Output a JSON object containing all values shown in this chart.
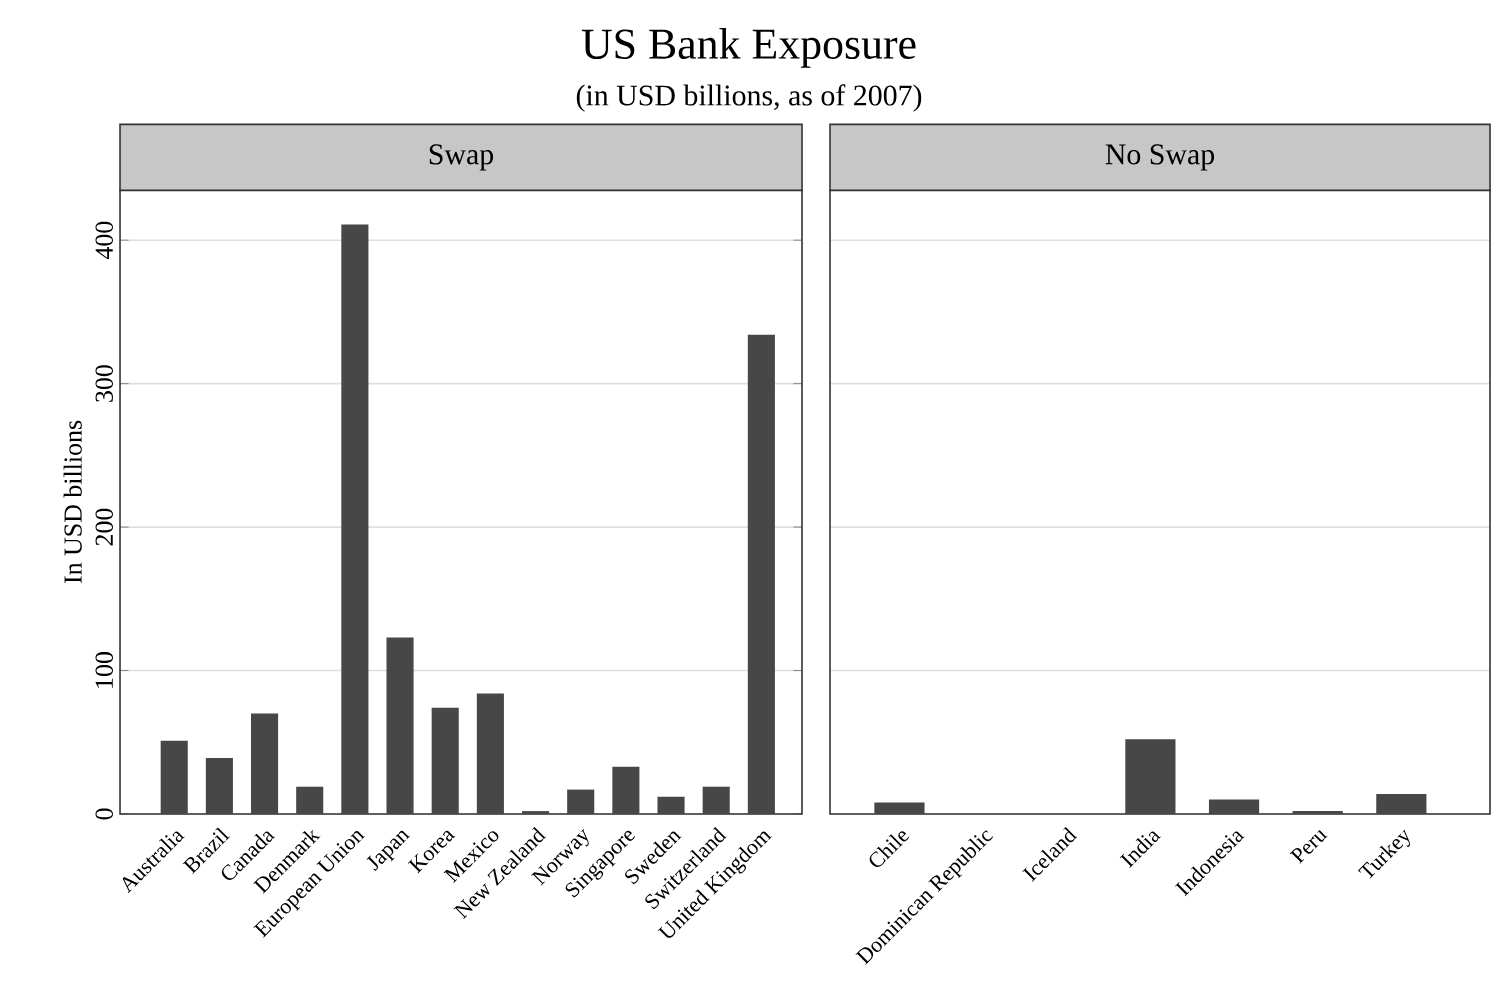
{
  "chart_data": [
    {
      "type": "bar",
      "title": "Swap",
      "annotations": [
        "US Bank Exposure",
        "(in USD billions, as of 2007)"
      ],
      "ylabel": "In USD billions",
      "categories": [
        "Australia",
        "Brazil",
        "Canada",
        "Denmark",
        "European Union",
        "Japan",
        "Korea",
        "Mexico",
        "New Zealand",
        "Norway",
        "Singapore",
        "Sweden",
        "Switzerland",
        "United Kingdom"
      ],
      "values": [
        51,
        39,
        70,
        19,
        411,
        123,
        74,
        84,
        2,
        17,
        33,
        12,
        19,
        334
      ],
      "color": "#474747",
      "ylim": [
        0,
        435
      ],
      "yticks": [
        0,
        100,
        200,
        300,
        400
      ],
      "grid": "y"
    },
    {
      "type": "bar",
      "title": "No Swap",
      "categories": [
        "Chile",
        "Dominican Republic",
        "Iceland",
        "India",
        "Indonesia",
        "Peru",
        "Turkey"
      ],
      "values": [
        8,
        0,
        0,
        52,
        10,
        2,
        14
      ],
      "color": "#474747",
      "ylim": [
        0,
        435
      ],
      "yticks": [
        0,
        100,
        200,
        300,
        400
      ],
      "grid": "y",
      "tick_labels": "x"
    }
  ]
}
